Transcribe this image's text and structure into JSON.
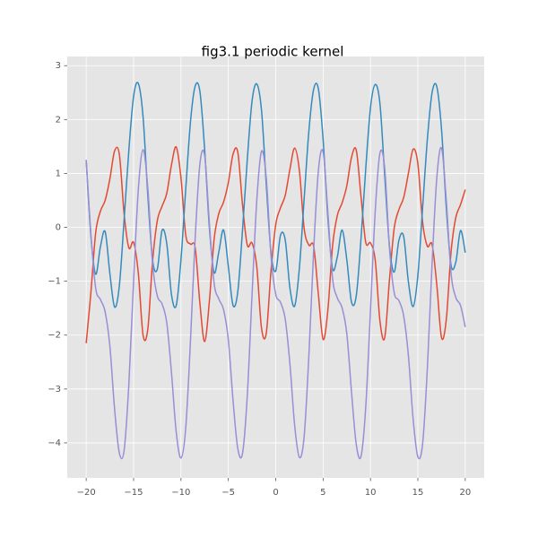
{
  "chart_data": {
    "type": "line",
    "title": "fig3.1 periodic kernel",
    "x": [
      -20,
      -19.5,
      -19,
      -18.5,
      -18,
      -17.5,
      -17,
      -16.5,
      -16,
      -15.5,
      -15,
      -14.5,
      -14,
      -13.5,
      -13,
      -12.5,
      -12,
      -11.5,
      -11,
      -10.5,
      -10,
      -9.5,
      -9,
      -8.5,
      -8,
      -7.5,
      -7,
      -6.5,
      -6,
      -5.5,
      -5,
      -4.5,
      -4,
      -3.5,
      -3,
      -2.5,
      -2,
      -1.5,
      -1,
      -0.5,
      0,
      0.5,
      1,
      1.5,
      2,
      2.5,
      3,
      3.5,
      4,
      4.5,
      5,
      5.5,
      6,
      6.5,
      7,
      7.5,
      8,
      8.5,
      9,
      9.5,
      10,
      10.5,
      11,
      11.5,
      12,
      12.5,
      13,
      13.5,
      14,
      14.5,
      15,
      15.5,
      16,
      16.5,
      17,
      17.5,
      18,
      18.5,
      19,
      19.5,
      20
    ],
    "series": [
      {
        "color": "#E24A33",
        "values": [
          -2.15,
          -1.2,
          -0.1,
          0.3,
          0.5,
          0.9,
          1.42,
          1.35,
          0.25,
          -0.38,
          -0.28,
          -0.85,
          -2.0,
          -1.89,
          -0.64,
          0.12,
          0.39,
          0.63,
          1.16,
          1.49,
          0.92,
          -0.14,
          -0.31,
          -0.38,
          -1.41,
          -2.12,
          -1.37,
          -0.22,
          0.26,
          0.47,
          0.83,
          1.36,
          1.39,
          0.41,
          -0.33,
          -0.29,
          -0.73,
          -1.87,
          -1.97,
          -0.81,
          0.05,
          0.36,
          0.59,
          1.08,
          1.47,
          1.05,
          -0.02,
          -0.33,
          -0.35,
          -1.24,
          -2.08,
          -1.54,
          -0.34,
          0.22,
          0.45,
          0.77,
          1.3,
          1.43,
          0.57,
          -0.28,
          -0.29,
          -0.61,
          -1.74,
          -2.05,
          -0.98,
          -0.02,
          0.33,
          0.55,
          1.0,
          1.45,
          1.18,
          0.1,
          -0.35,
          -0.32,
          -1.07,
          -2.05,
          -1.71,
          -0.46,
          0.18,
          0.42,
          0.7
        ]
      },
      {
        "color": "#348ABD",
        "values": [
          1.25,
          -0.17,
          -0.87,
          -0.36,
          -0.08,
          -0.86,
          -1.48,
          -1.08,
          0.14,
          1.43,
          2.43,
          2.67,
          2.05,
          0.6,
          -0.6,
          -0.78,
          -0.06,
          -0.3,
          -1.25,
          -1.45,
          -0.6,
          0.7,
          1.95,
          2.62,
          2.52,
          1.44,
          -0.01,
          -0.84,
          -0.45,
          -0.05,
          -0.73,
          -1.45,
          -1.19,
          -0.04,
          1.26,
          2.34,
          2.66,
          2.17,
          0.8,
          -0.47,
          -0.81,
          -0.15,
          -0.23,
          -1.13,
          -1.46,
          -0.75,
          0.53,
          1.79,
          2.56,
          2.57,
          1.63,
          0.18,
          -0.77,
          -0.55,
          -0.05,
          -0.6,
          -1.39,
          -1.27,
          -0.21,
          1.09,
          2.22,
          2.65,
          2.29,
          0.96,
          -0.34,
          -0.83,
          -0.24,
          -0.17,
          -1.01,
          -1.47,
          -0.89,
          0.36,
          1.63,
          2.5,
          2.61,
          1.81,
          0.36,
          -0.7,
          -0.65,
          -0.06,
          -0.47
        ]
      },
      {
        "color": "#988ED5",
        "values": [
          1.25,
          -0.14,
          -1.13,
          -1.34,
          -1.57,
          -2.21,
          -3.38,
          -4.19,
          -4.14,
          -2.91,
          -1.0,
          0.7,
          1.44,
          0.73,
          -0.67,
          -1.27,
          -1.42,
          -1.77,
          -2.7,
          -3.8,
          -4.28,
          -3.73,
          -2.12,
          -0.2,
          1.18,
          1.33,
          0.07,
          -1.04,
          -1.33,
          -1.53,
          -2.09,
          -3.22,
          -4.11,
          -4.19,
          -3.12,
          -1.26,
          0.5,
          1.41,
          0.92,
          -0.52,
          -1.24,
          -1.39,
          -1.7,
          -2.54,
          -3.68,
          -4.27,
          -3.88,
          -2.37,
          -0.44,
          1.05,
          1.4,
          0.28,
          -0.95,
          -1.31,
          -1.49,
          -1.97,
          -3.06,
          -4.03,
          -4.25,
          -3.33,
          -1.53,
          0.3,
          1.38,
          1.1,
          -0.38,
          -1.21,
          -1.36,
          -1.64,
          -2.38,
          -3.56,
          -4.26,
          -4.02,
          -2.62,
          -0.67,
          0.92,
          1.47,
          0.5,
          -0.85,
          -1.3,
          -1.45,
          -1.85
        ]
      }
    ],
    "xlim": [
      -22,
      22
    ],
    "xticks": [
      {
        "value": -20,
        "label": "−20"
      },
      {
        "value": -15,
        "label": "−15"
      },
      {
        "value": -10,
        "label": "−10"
      },
      {
        "value": -5,
        "label": "−5"
      },
      0,
      5,
      10,
      15,
      20
    ],
    "ylim": [
      -4.65,
      3.17
    ],
    "yticks": [
      {
        "value": -4,
        "label": "−4"
      },
      {
        "value": -3,
        "label": "−3"
      },
      {
        "value": -2,
        "label": "−2"
      },
      {
        "value": -1,
        "label": "−1"
      },
      0,
      1,
      2,
      3
    ],
    "grid": true
  }
}
